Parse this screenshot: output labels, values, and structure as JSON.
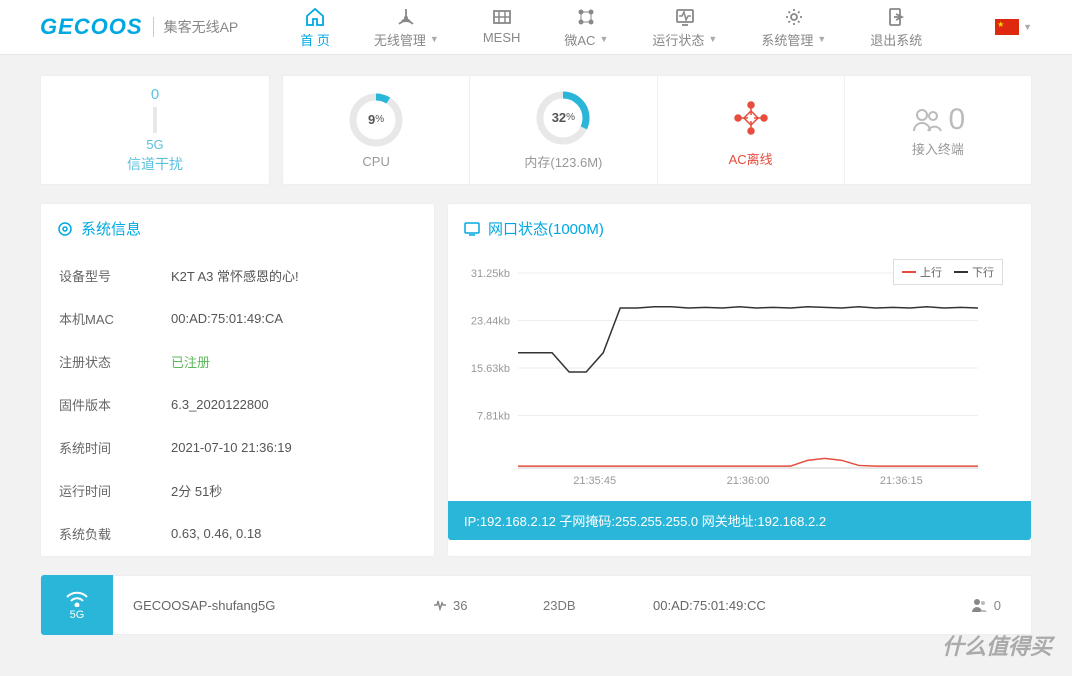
{
  "brand": {
    "name": "GECOOS",
    "subtitle": "集客无线AP"
  },
  "nav": [
    {
      "label": "首 页",
      "active": true,
      "dropdown": false
    },
    {
      "label": "无线管理",
      "dropdown": true
    },
    {
      "label": "MESH",
      "dropdown": false
    },
    {
      "label": "微AC",
      "dropdown": true
    },
    {
      "label": "运行状态",
      "dropdown": true
    },
    {
      "label": "系统管理",
      "dropdown": true
    },
    {
      "label": "退出系统",
      "dropdown": false
    }
  ],
  "interference": {
    "value": "0",
    "band": "5G",
    "label": "信道干扰",
    "color": "#5bc0de"
  },
  "stats": {
    "cpu": {
      "pct": 9,
      "label": "CPU",
      "color": "#29b6d8",
      "track": "#e8e8e8"
    },
    "mem": {
      "pct": 32,
      "label": "内存(123.6M)",
      "color": "#29b6d8",
      "track": "#e8e8e8"
    },
    "ac": {
      "label": "AC离线",
      "color": "#e74c3c"
    },
    "clients": {
      "count": "0",
      "label": "接入终端",
      "color": "#bbb"
    }
  },
  "sysinfo": {
    "title": "系统信息",
    "rows": [
      {
        "k": "设备型号",
        "v": "K2T A3 常怀感恩的心!"
      },
      {
        "k": "本机MAC",
        "v": "00:AD:75:01:49:CA"
      },
      {
        "k": "注册状态",
        "v": "已注册",
        "green": true
      },
      {
        "k": "固件版本",
        "v": "6.3_2020122800"
      },
      {
        "k": "系统时间",
        "v": "2021-07-10 21:36:19"
      },
      {
        "k": "运行时间",
        "v": "2分 51秒"
      },
      {
        "k": "系统负载",
        "v": "0.63, 0.46, 0.18"
      }
    ]
  },
  "netport": {
    "title": "网口状态(1000M)",
    "legend": {
      "up": "上行",
      "down": "下行",
      "up_color": "#e74c3c",
      "down_color": "#333"
    },
    "ylabels": [
      "31.25kb",
      "23.44kb",
      "15.63kb",
      "7.81kb"
    ],
    "xlabels": [
      "21:35:45",
      "21:36:00",
      "21:36:15"
    ],
    "series_down": [
      18,
      18,
      18,
      15,
      15,
      18,
      25,
      25,
      25.2,
      25.2,
      25,
      25.1,
      25,
      25.2,
      25,
      25.1,
      25,
      25.2,
      25.1,
      25,
      25.2,
      25,
      25.1,
      25,
      25.2,
      25,
      25.1,
      25
    ],
    "series_up": [
      0.3,
      0.3,
      0.3,
      0.3,
      0.3,
      0.3,
      0.3,
      0.3,
      0.3,
      0.3,
      0.3,
      0.3,
      0.3,
      0.3,
      0.3,
      0.3,
      0.3,
      1.2,
      1.5,
      1.2,
      0.4,
      0.3,
      0.3,
      0.3,
      0.3,
      0.3,
      0.3,
      0.3
    ],
    "ymax": 31.25,
    "ip_bar": "IP:192.168.2.12  子网掩码:255.255.255.0  网关地址:192.168.2.2"
  },
  "ssid": {
    "band": "5G",
    "name": "GECOOSAP-shufang5G",
    "channel": "36",
    "signal": "23DB",
    "mac": "00:AD:75:01:49:CC",
    "clients": "0"
  },
  "watermark": "什么值得买"
}
